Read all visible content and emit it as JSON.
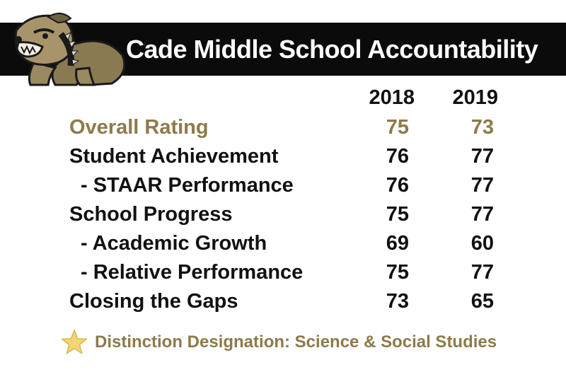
{
  "header": {
    "title": "Cade Middle School Accountability",
    "mascot_icon": "bulldog-mascot-icon"
  },
  "table": {
    "columns": [
      "2018",
      "2019"
    ],
    "rows": [
      {
        "label": "Overall Rating",
        "y2018": "75",
        "y2019": "73",
        "highlight": true
      },
      {
        "label": "Student Achievement",
        "y2018": "76",
        "y2019": "77"
      },
      {
        "label": "- STAAR Performance",
        "y2018": "76",
        "y2019": "77",
        "indent": true
      },
      {
        "label": "School Progress",
        "y2018": "75",
        "y2019": "77"
      },
      {
        "label": "- Academic Growth",
        "y2018": "69",
        "y2019": "60",
        "indent": true
      },
      {
        "label": "- Relative Performance",
        "y2018": "75",
        "y2019": "77",
        "indent": true
      },
      {
        "label": "Closing the Gaps",
        "y2018": "73",
        "y2019": "65"
      }
    ]
  },
  "distinction": {
    "icon": "star-icon",
    "text": "Distinction Designation: Science & Social Studies"
  },
  "colors": {
    "banner": "#0b0b0b",
    "gold": "#8c7a4a",
    "text": "#111111",
    "star": "#f2d675"
  }
}
